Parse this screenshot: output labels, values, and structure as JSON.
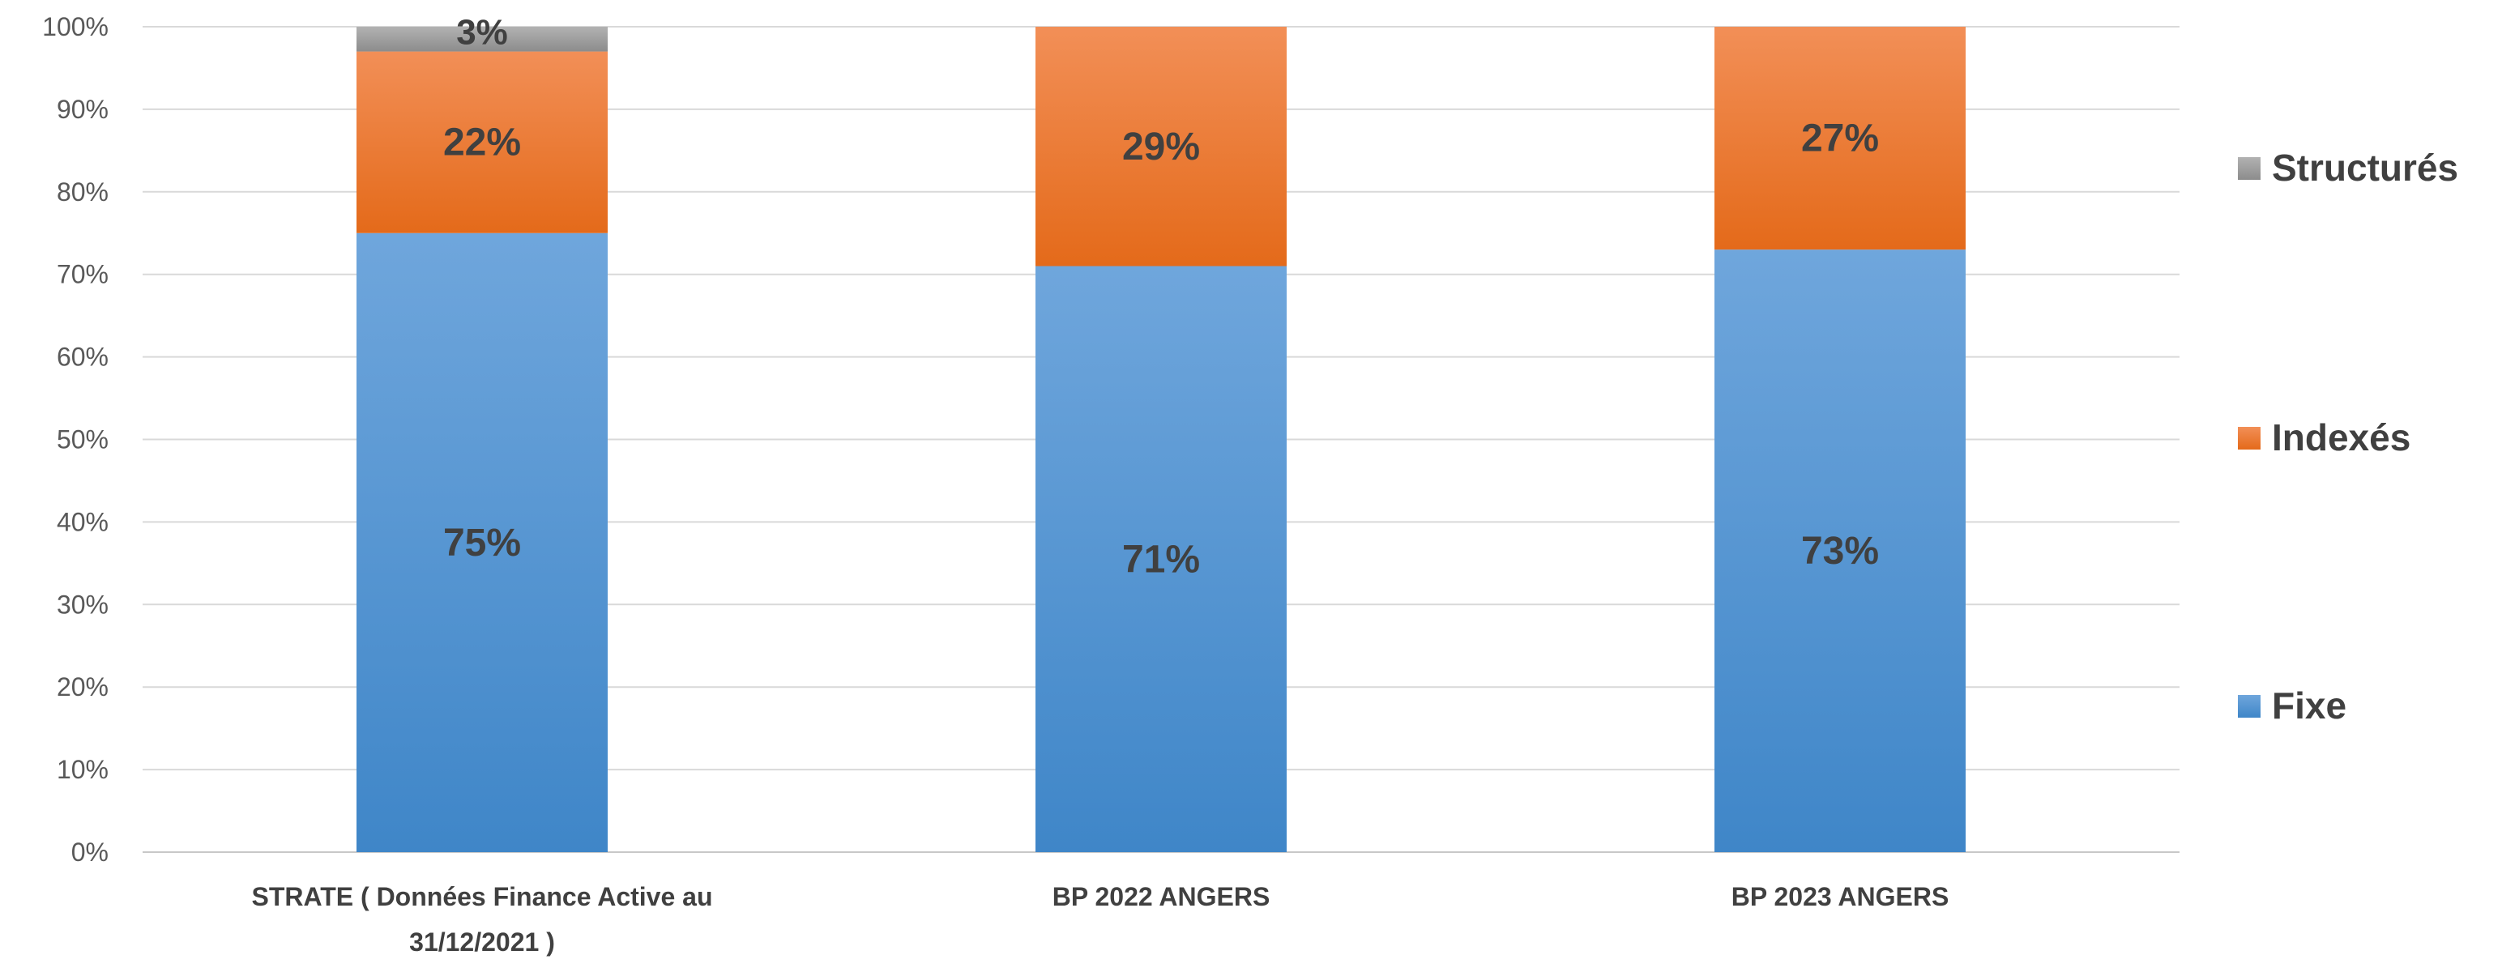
{
  "chart_data": {
    "type": "bar",
    "stacked": true,
    "title": "",
    "xlabel": "",
    "ylabel": "",
    "ylim": [
      0,
      100
    ],
    "y_ticks": [
      "0%",
      "10%",
      "20%",
      "30%",
      "40%",
      "50%",
      "60%",
      "70%",
      "80%",
      "90%",
      "100%"
    ],
    "grid": true,
    "legend_position": "right",
    "categories": [
      [
        "STRATE ( Données Finance Active au",
        "31/12/2021 )"
      ],
      [
        "BP 2022 ANGERS"
      ],
      [
        "BP 2023 ANGERS"
      ]
    ],
    "series": [
      {
        "name": "Fixe",
        "color_top": "#6fa6dc",
        "color_bottom": "#3f86c8",
        "values": [
          75,
          71,
          73
        ],
        "labels": [
          "75%",
          "71%",
          "73%"
        ]
      },
      {
        "name": "Indexés",
        "color_top": "#f28f57",
        "color_bottom": "#e46a1a",
        "values": [
          22,
          29,
          27
        ],
        "labels": [
          "22%",
          "29%",
          "27%"
        ]
      },
      {
        "name": "Structurés",
        "color_top": "#b2b2b2",
        "color_bottom": "#8c8c8c",
        "values": [
          3,
          0,
          0
        ],
        "labels": [
          "3%",
          "",
          ""
        ]
      }
    ],
    "legend_order": [
      "Structurés",
      "Indexés",
      "Fixe"
    ]
  }
}
